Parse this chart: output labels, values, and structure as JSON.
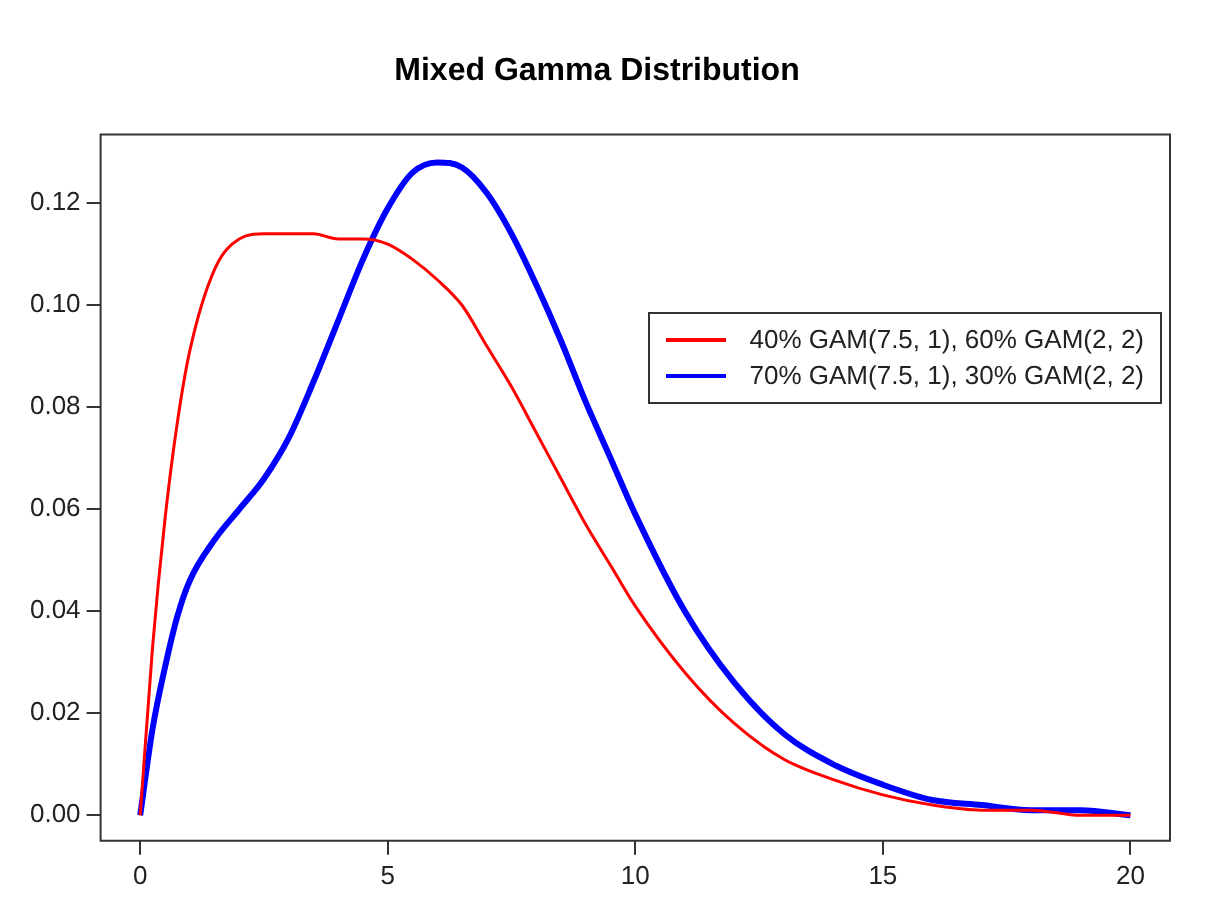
{
  "chart_data": {
    "type": "line",
    "title": "Mixed Gamma Distribution",
    "x": [
      0,
      0.25,
      0.5,
      0.75,
      1,
      1.5,
      2,
      2.5,
      3,
      3.5,
      4,
      4.5,
      5,
      5.5,
      6,
      6.5,
      7,
      7.5,
      8,
      8.5,
      9,
      9.5,
      10,
      11,
      12,
      13,
      14,
      15,
      16,
      17,
      18,
      19,
      20
    ],
    "series": [
      {
        "name": "40% GAM(7.5, 1), 60% GAM(2, 2)",
        "color": "#ff0000",
        "values": [
          0,
          0.033,
          0.058,
          0.077,
          0.091,
          0.107,
          0.113,
          0.114,
          0.114,
          0.114,
          0.113,
          0.113,
          0.112,
          0.109,
          0.105,
          0.1,
          0.092,
          0.084,
          0.075,
          0.066,
          0.057,
          0.049,
          0.041,
          0.028,
          0.018,
          0.011,
          0.007,
          0.004,
          0.002,
          0.001,
          0.001,
          0.0,
          0.0
        ]
      },
      {
        "name": "70% GAM(7.5, 1), 30% GAM(2, 2)",
        "color": "#0000ff",
        "values": [
          0,
          0.017,
          0.029,
          0.039,
          0.046,
          0.054,
          0.06,
          0.066,
          0.074,
          0.085,
          0.097,
          0.109,
          0.119,
          0.126,
          0.128,
          0.127,
          0.122,
          0.114,
          0.104,
          0.093,
          0.081,
          0.07,
          0.059,
          0.04,
          0.026,
          0.016,
          0.01,
          0.006,
          0.003,
          0.002,
          0.001,
          0.001,
          0.0
        ]
      }
    ],
    "xlim": [
      -0.8,
      20.8
    ],
    "xticks": [
      0,
      5,
      10,
      15,
      20
    ],
    "ylim": [
      -0.005,
      0.1335
    ],
    "yticks": [
      {
        "value": 0,
        "label": "0.00"
      },
      {
        "value": 0.02,
        "label": "0.02"
      },
      {
        "value": 0.04,
        "label": "0.04"
      },
      {
        "value": 0.06,
        "label": "0.06"
      },
      {
        "value": 0.08,
        "label": "0.08"
      },
      {
        "value": 0.1,
        "label": "0.10"
      },
      {
        "value": 0.12,
        "label": "0.12"
      }
    ],
    "legend": "right",
    "grid": false,
    "marker": "none",
    "line_style": "solid"
  }
}
